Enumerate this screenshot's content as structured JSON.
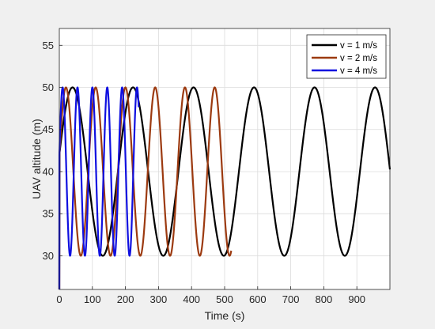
{
  "chart_data": {
    "type": "line",
    "title": "",
    "xlabel": "Time (s)",
    "ylabel": "UAV altitude (m)",
    "xlim": [
      0,
      1000
    ],
    "ylim": [
      26,
      57
    ],
    "xticks": [
      0,
      100,
      200,
      300,
      400,
      500,
      600,
      700,
      800,
      900
    ],
    "yticks": [
      30,
      35,
      40,
      45,
      50,
      55
    ],
    "grid": true,
    "legend_position": "top-right",
    "series": [
      {
        "name": "v = 1 m/s",
        "color": "#000000",
        "x_end": 1000,
        "period": 183,
        "peak_time": 40,
        "min": 30,
        "max": 50
      },
      {
        "name": "v = 2 m/s",
        "color": "#9c3a10",
        "x_end": 520,
        "period": 90,
        "peak_time": 20,
        "min": 30,
        "max": 50
      },
      {
        "name": "v = 4 m/s",
        "color": "#1010e0",
        "x_end": 240,
        "period": 45,
        "peak_time": 10,
        "min": 30,
        "max": 50
      }
    ]
  }
}
